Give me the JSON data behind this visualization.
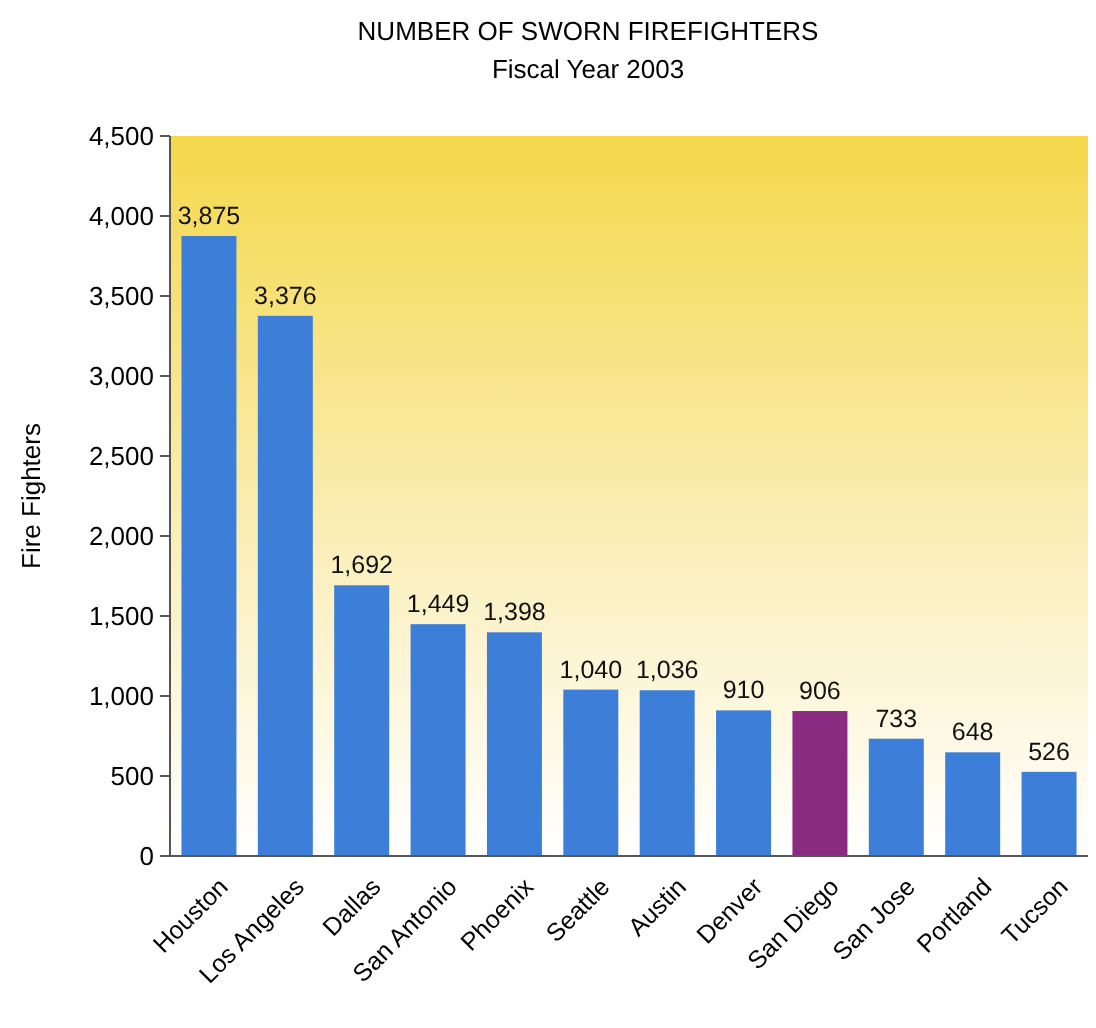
{
  "chart_data": {
    "type": "bar",
    "title": "NUMBER OF SWORN FIREFIGHTERS",
    "subtitle": "Fiscal Year 2003",
    "ylabel": "Fire Fighters",
    "categories": [
      "Houston",
      "Los Angeles",
      "Dallas",
      "San Antonio",
      "Phoenix",
      "Seattle",
      "Austin",
      "Denver",
      "San Diego",
      "San Jose",
      "Portland",
      "Tucson"
    ],
    "values": [
      3875,
      3376,
      1692,
      1449,
      1398,
      1040,
      1036,
      910,
      906,
      733,
      648,
      526
    ],
    "colors": [
      "#3d7fd8",
      "#3d7fd8",
      "#3d7fd8",
      "#3d7fd8",
      "#3d7fd8",
      "#3d7fd8",
      "#3d7fd8",
      "#3d7fd8",
      "#8a2b82",
      "#3d7fd8",
      "#3d7fd8",
      "#3d7fd8"
    ],
    "ylim": [
      0,
      4500
    ],
    "yticks": [
      {
        "value": 0,
        "label": "0"
      },
      {
        "value": 500,
        "label": "500"
      },
      {
        "value": 1000,
        "label": "1,000"
      },
      {
        "value": 1500,
        "label": "1,500"
      },
      {
        "value": 2000,
        "label": "2,000"
      },
      {
        "value": 2500,
        "label": "2,500"
      },
      {
        "value": 3000,
        "label": "3,000"
      },
      {
        "value": 3500,
        "label": "3,500"
      },
      {
        "value": 4000,
        "label": "4,000"
      },
      {
        "value": 4500,
        "label": "4,500"
      }
    ],
    "value_labels": [
      "3,875",
      "3,376",
      "1,692",
      "1,449",
      "1,398",
      "1,040",
      "1,036",
      "910",
      "906",
      "733",
      "648",
      "526"
    ],
    "grid": false
  }
}
